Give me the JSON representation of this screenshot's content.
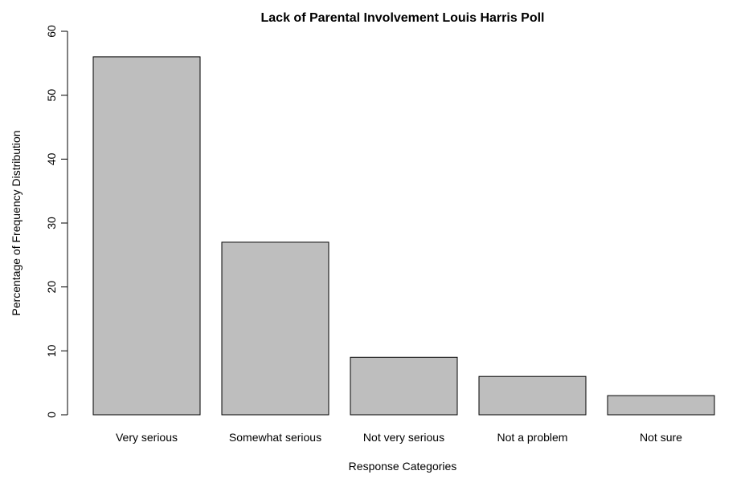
{
  "chart_data": {
    "type": "bar",
    "title": "Lack of Parental Involvement Louis Harris Poll",
    "xlabel": "Response Categories",
    "ylabel": "Percentage of Frequency Distribution",
    "categories": [
      "Very serious",
      "Somewhat serious",
      "Not very serious",
      "Not a problem",
      "Not sure"
    ],
    "values": [
      56,
      27,
      9,
      6,
      3
    ],
    "ylim": [
      0,
      60
    ],
    "yticks": [
      0,
      10,
      20,
      30,
      40,
      50,
      60
    ],
    "ytick_labels": [
      "0",
      "10",
      "20",
      "30",
      "40",
      "50",
      "60"
    ],
    "grid": false,
    "legend": "none",
    "bar_color": "#bebebe",
    "edge_color": "#000000"
  }
}
